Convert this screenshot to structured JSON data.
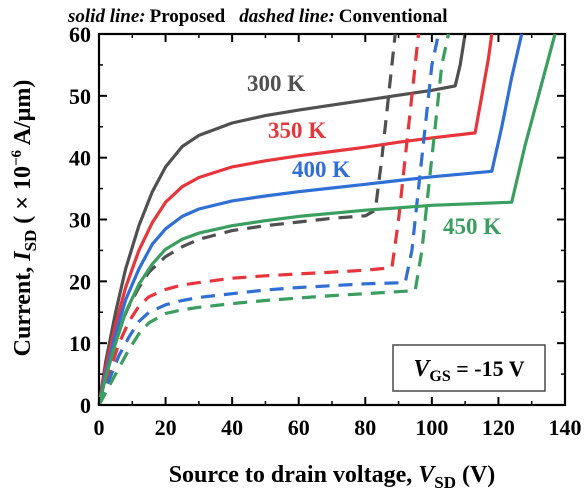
{
  "chart_data": {
    "type": "line",
    "title": "",
    "legend_note": {
      "solid_prefix": "solid line:",
      "solid_text": "Proposed",
      "dashed_prefix": "dashed line:",
      "dashed_text": "Conventional"
    },
    "xlabel": {
      "main": "Source to drain voltage, ",
      "var": "V",
      "sub": "SD",
      "unit": " (V)"
    },
    "ylabel": {
      "main": "Current, ",
      "var": "I",
      "sub": "SD",
      "unit_pre": " ( × 10",
      "exp": "−6",
      "unit_post": " A/μm)"
    },
    "xlim": [
      0,
      140
    ],
    "ylim": [
      0,
      60
    ],
    "xticks": [
      0,
      20,
      40,
      60,
      80,
      100,
      120,
      140
    ],
    "yticks": [
      0,
      10,
      20,
      30,
      40,
      50,
      60
    ],
    "xtick_labels": [
      "0",
      "20",
      "40",
      "60",
      "80",
      "100",
      "120",
      "140"
    ],
    "ytick_labels": [
      "0",
      "10",
      "20",
      "30",
      "40",
      "50",
      "60"
    ],
    "grid": false,
    "annotation_box": {
      "var": "V",
      "sub": "GS",
      "value": " = -15 V"
    },
    "series": [
      {
        "name": "300 K",
        "color": "#505050",
        "label_color": "#505050",
        "solid": [
          [
            0,
            0
          ],
          [
            2,
            7
          ],
          [
            5,
            15
          ],
          [
            8,
            22
          ],
          [
            12,
            29
          ],
          [
            16,
            34.5
          ],
          [
            20,
            38.5
          ],
          [
            25,
            41.8
          ],
          [
            30,
            43.6
          ],
          [
            40,
            45.6
          ],
          [
            50,
            46.8
          ],
          [
            60,
            47.7
          ],
          [
            70,
            48.5
          ],
          [
            80,
            49.3
          ],
          [
            90,
            50.1
          ],
          [
            100,
            50.9
          ],
          [
            107,
            51.6
          ],
          [
            108.5,
            55
          ],
          [
            110,
            60
          ]
        ],
        "dashed": [
          [
            0,
            0
          ],
          [
            2,
            5
          ],
          [
            4,
            9
          ],
          [
            6,
            12.5
          ],
          [
            9,
            16
          ],
          [
            12,
            19
          ],
          [
            15,
            21.5
          ],
          [
            20,
            24
          ],
          [
            25,
            25.6
          ],
          [
            30,
            26.8
          ],
          [
            40,
            28.2
          ],
          [
            50,
            29
          ],
          [
            60,
            29.6
          ],
          [
            70,
            30.2
          ],
          [
            80,
            30.6
          ],
          [
            83,
            31.5
          ],
          [
            85,
            40
          ],
          [
            87,
            50
          ],
          [
            88,
            55
          ],
          [
            89,
            60
          ]
        ]
      },
      {
        "name": "350 K",
        "color": "#e8353b",
        "label_color": "#e8353b",
        "solid": [
          [
            0,
            0
          ],
          [
            2,
            6
          ],
          [
            5,
            13
          ],
          [
            8,
            19
          ],
          [
            12,
            25
          ],
          [
            16,
            29.5
          ],
          [
            20,
            32.8
          ],
          [
            25,
            35.3
          ],
          [
            30,
            36.8
          ],
          [
            40,
            38.5
          ],
          [
            50,
            39.5
          ],
          [
            60,
            40.3
          ],
          [
            70,
            41
          ],
          [
            80,
            41.7
          ],
          [
            90,
            42.5
          ],
          [
            100,
            43.2
          ],
          [
            113,
            44
          ],
          [
            115,
            50
          ],
          [
            117,
            56
          ],
          [
            118,
            60
          ]
        ],
        "dashed": [
          [
            0,
            0
          ],
          [
            3,
            5
          ],
          [
            6,
            10
          ],
          [
            9,
            13.5
          ],
          [
            12,
            16
          ],
          [
            15,
            17.5
          ],
          [
            20,
            18.7
          ],
          [
            25,
            19.4
          ],
          [
            30,
            19.8
          ],
          [
            40,
            20.5
          ],
          [
            50,
            20.9
          ],
          [
            60,
            21.2
          ],
          [
            70,
            21.5
          ],
          [
            80,
            21.8
          ],
          [
            88,
            22.2
          ],
          [
            90,
            30
          ],
          [
            92,
            40
          ],
          [
            94,
            50
          ],
          [
            95,
            55
          ],
          [
            96,
            60
          ]
        ]
      },
      {
        "name": "400 K",
        "color": "#2f6fd6",
        "label_color": "#2f6fd6",
        "solid": [
          [
            0,
            0
          ],
          [
            2,
            5
          ],
          [
            5,
            11.5
          ],
          [
            8,
            17
          ],
          [
            12,
            22
          ],
          [
            16,
            26
          ],
          [
            20,
            28.5
          ],
          [
            25,
            30.5
          ],
          [
            30,
            31.7
          ],
          [
            40,
            33
          ],
          [
            50,
            33.8
          ],
          [
            60,
            34.5
          ],
          [
            70,
            35.1
          ],
          [
            80,
            35.7
          ],
          [
            90,
            36.3
          ],
          [
            100,
            36.9
          ],
          [
            118,
            37.8
          ],
          [
            121,
            45
          ],
          [
            124,
            53
          ],
          [
            127,
            60
          ]
        ],
        "dashed": [
          [
            0,
            0
          ],
          [
            3,
            4
          ],
          [
            6,
            8
          ],
          [
            9,
            11
          ],
          [
            12,
            13.5
          ],
          [
            15,
            15
          ],
          [
            20,
            16.2
          ],
          [
            25,
            16.9
          ],
          [
            30,
            17.4
          ],
          [
            40,
            18
          ],
          [
            50,
            18.6
          ],
          [
            60,
            19
          ],
          [
            70,
            19.3
          ],
          [
            80,
            19.6
          ],
          [
            92,
            19.8
          ],
          [
            94,
            25
          ],
          [
            96,
            35
          ],
          [
            98,
            45
          ],
          [
            100,
            55
          ],
          [
            102,
            60
          ]
        ]
      },
      {
        "name": "450 K",
        "color": "#3a9e5f",
        "label_color": "#3a9e5f",
        "solid": [
          [
            0,
            0
          ],
          [
            2,
            4.5
          ],
          [
            5,
            10
          ],
          [
            8,
            15
          ],
          [
            12,
            19.5
          ],
          [
            16,
            22.8
          ],
          [
            20,
            25.2
          ],
          [
            25,
            26.8
          ],
          [
            30,
            27.8
          ],
          [
            40,
            29
          ],
          [
            50,
            29.8
          ],
          [
            60,
            30.5
          ],
          [
            70,
            31
          ],
          [
            80,
            31.5
          ],
          [
            90,
            31.9
          ],
          [
            100,
            32.3
          ],
          [
            124,
            32.8
          ],
          [
            128,
            42
          ],
          [
            132,
            50
          ],
          [
            135,
            56
          ],
          [
            137,
            60
          ]
        ],
        "dashed": [
          [
            0,
            0
          ],
          [
            3,
            3
          ],
          [
            6,
            6
          ],
          [
            9,
            9
          ],
          [
            12,
            11.5
          ],
          [
            15,
            13.3
          ],
          [
            20,
            14.8
          ],
          [
            25,
            15.4
          ],
          [
            30,
            15.8
          ],
          [
            40,
            16.4
          ],
          [
            50,
            16.9
          ],
          [
            60,
            17.3
          ],
          [
            70,
            17.7
          ],
          [
            80,
            18
          ],
          [
            95,
            18.5
          ],
          [
            97,
            25
          ],
          [
            99,
            35
          ],
          [
            101,
            45
          ],
          [
            103,
            55
          ],
          [
            105,
            60
          ]
        ]
      }
    ]
  }
}
